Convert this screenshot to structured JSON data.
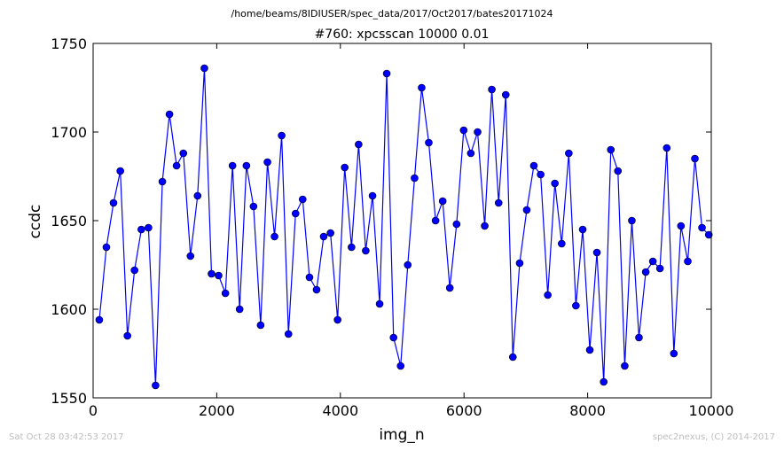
{
  "footer": {
    "timestamp": "Sat Oct 28 03:42:53 2017",
    "credit": "spec2nexus, (C) 2014-2017"
  },
  "chart_data": {
    "type": "line",
    "suptitle": "/home/beams/8IDIUSER/spec_data/2017/Oct2017/bates20171024",
    "title": "#760: xpcsscan 10000 0.01",
    "xlabel": "img_n",
    "ylabel": "ccdc",
    "xlim": [
      0,
      10000
    ],
    "ylim": [
      1550,
      1750
    ],
    "xticks": [
      0,
      2000,
      4000,
      6000,
      8000,
      10000
    ],
    "yticks": [
      1550,
      1600,
      1650,
      1700,
      1750
    ],
    "grid": false,
    "legend": "none",
    "line_color": "#0000ff",
    "marker": "circle",
    "series": [
      {
        "x": [
          100,
          215,
          330,
          440,
          555,
          670,
          780,
          895,
          1010,
          1120,
          1235,
          1350,
          1460,
          1575,
          1690,
          1800,
          1915,
          2030,
          2140,
          2255,
          2370,
          2480,
          2595,
          2710,
          2820,
          2935,
          3050,
          3160,
          3275,
          3390,
          3500,
          3615,
          3730,
          3840,
          3955,
          4070,
          4180,
          4295,
          4410,
          4520,
          4635,
          4750,
          4860,
          4975,
          5090,
          5200,
          5315,
          5430,
          5540,
          5655,
          5770,
          5880,
          5995,
          6110,
          6220,
          6335,
          6450,
          6560,
          6675,
          6790,
          6900,
          7015,
          7130,
          7240,
          7355,
          7470,
          7580,
          7695,
          7810,
          7920,
          8035,
          8150,
          8260,
          8375,
          8490,
          8600,
          8715,
          8830,
          8940,
          9055,
          9170,
          9280,
          9395,
          9510,
          9620,
          9735,
          9850,
          9960
        ],
        "y": [
          1594,
          1635,
          1660,
          1678,
          1585,
          1622,
          1645,
          1646,
          1557,
          1672,
          1710,
          1681,
          1688,
          1630,
          1664,
          1736,
          1620,
          1619,
          1609,
          1681,
          1600,
          1681,
          1658,
          1591,
          1683,
          1641,
          1698,
          1586,
          1654,
          1662,
          1618,
          1611,
          1641,
          1643,
          1594,
          1680,
          1635,
          1693,
          1633,
          1664,
          1603,
          1733,
          1584,
          1568,
          1625,
          1674,
          1725,
          1694,
          1650,
          1661,
          1612,
          1648,
          1701,
          1688,
          1700,
          1647,
          1724,
          1660,
          1721,
          1573,
          1626,
          1656,
          1681,
          1676,
          1608,
          1671,
          1637,
          1688,
          1602,
          1645,
          1577,
          1632,
          1559,
          1690,
          1678,
          1568,
          1650,
          1584,
          1621,
          1627,
          1623,
          1691,
          1575,
          1647,
          1627,
          1685,
          1646,
          1642
        ]
      }
    ]
  }
}
